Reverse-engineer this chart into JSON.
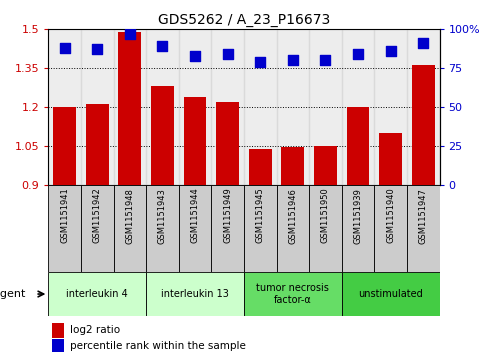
{
  "title": "GDS5262 / A_23_P16673",
  "samples": [
    "GSM1151941",
    "GSM1151942",
    "GSM1151948",
    "GSM1151943",
    "GSM1151944",
    "GSM1151949",
    "GSM1151945",
    "GSM1151946",
    "GSM1151950",
    "GSM1151939",
    "GSM1151940",
    "GSM1151947"
  ],
  "log2_values": [
    1.2,
    1.21,
    1.49,
    1.28,
    1.24,
    1.22,
    1.04,
    1.045,
    1.05,
    1.2,
    1.1,
    1.36
  ],
  "percentile_values": [
    88,
    87,
    97,
    89,
    83,
    84,
    79,
    80,
    80,
    84,
    86,
    91
  ],
  "bar_bottom": 0.9,
  "ylim": [
    0.9,
    1.5
  ],
  "yticks_left": [
    0.9,
    1.05,
    1.2,
    1.35,
    1.5
  ],
  "right_yticks_pct": [
    0,
    25,
    50,
    75,
    100
  ],
  "bar_color": "#cc0000",
  "dot_color": "#0000cc",
  "dot_size": 45,
  "groups": [
    {
      "label": "interleukin 4",
      "start": 0,
      "end": 3,
      "color": "#ccffcc"
    },
    {
      "label": "interleukin 13",
      "start": 3,
      "end": 6,
      "color": "#ccffcc"
    },
    {
      "label": "tumor necrosis\nfactor-α",
      "start": 6,
      "end": 9,
      "color": "#66dd66"
    },
    {
      "label": "unstimulated",
      "start": 9,
      "end": 12,
      "color": "#44cc44"
    }
  ],
  "legend_bar_color": "#cc0000",
  "legend_dot_color": "#0000cc",
  "legend_label_bar": "log2 ratio",
  "legend_label_dot": "percentile rank within the sample",
  "agent_label": "agent",
  "ylabel_color": "#cc0000",
  "right_ylabel_color": "#0000cc",
  "sample_cell_color": "#cccccc",
  "cell_edge_color": "#000000"
}
